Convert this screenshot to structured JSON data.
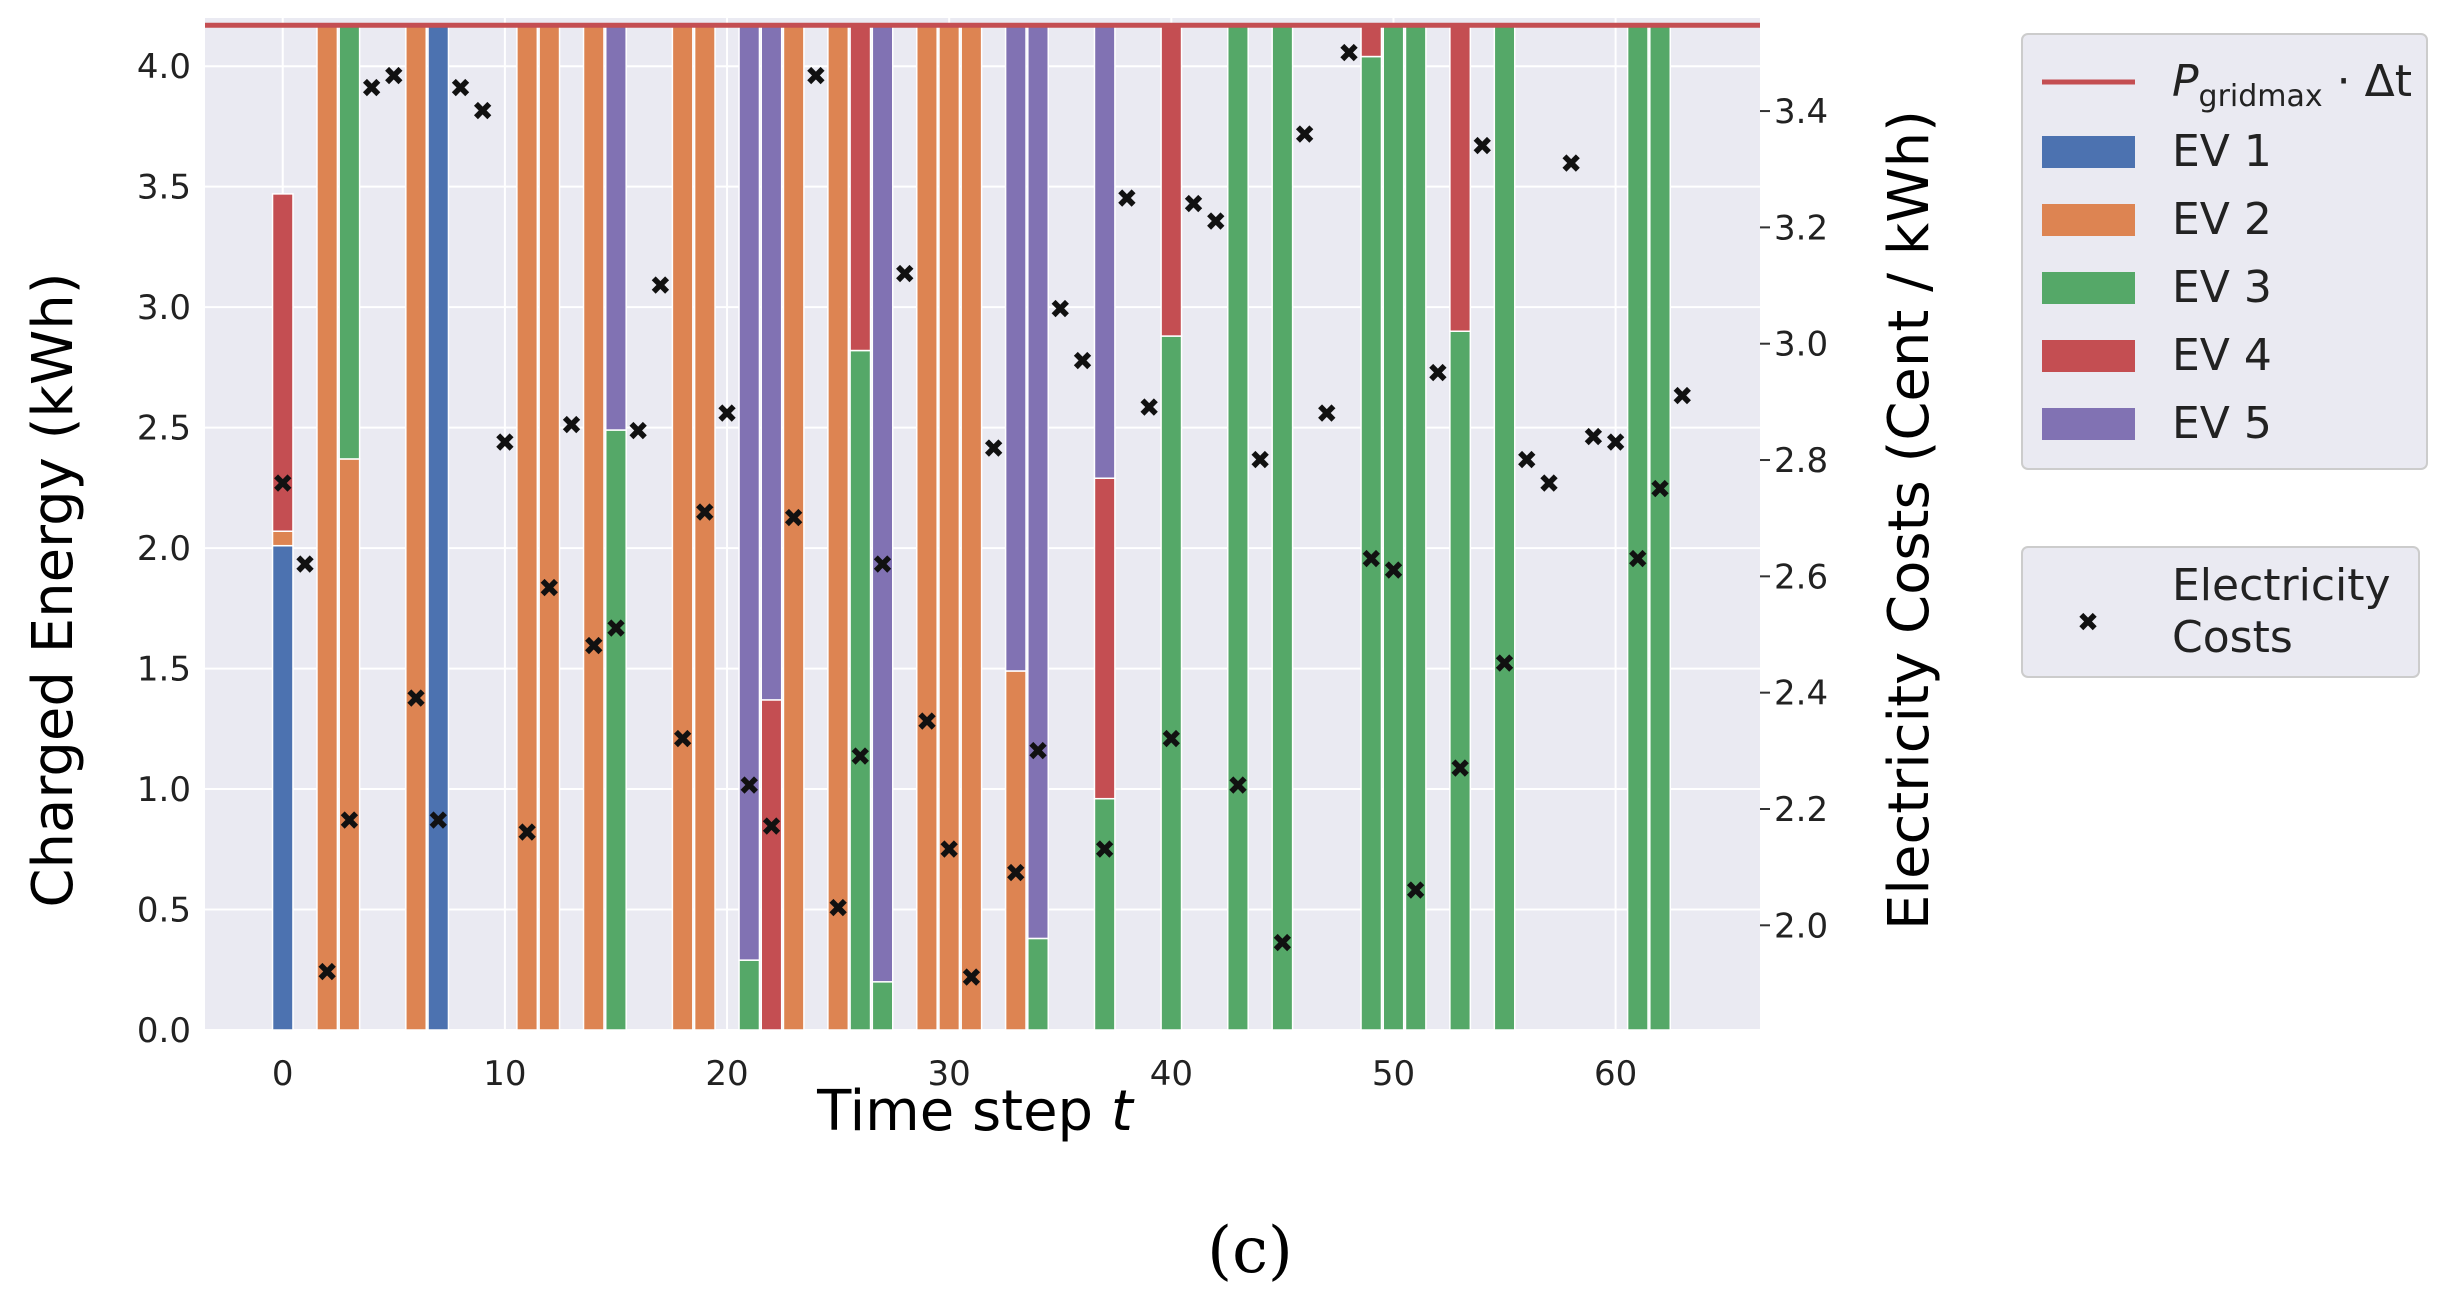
{
  "chart_data": {
    "type": "bar",
    "stacked": true,
    "xlabel": "Time step t",
    "xlabel_main": "Time step ",
    "xlabel_var": "t",
    "ylabel": "Charged Energy (kWh)",
    "y2label": "Electricity Costs (Cent / kWh)",
    "caption": "(c)",
    "xlim": [
      -3.5,
      66.5
    ],
    "ylim": [
      0.0,
      4.2
    ],
    "y2lim": [
      1.82,
      3.56
    ],
    "xticks": [
      0,
      10,
      20,
      30,
      40,
      50,
      60
    ],
    "yticks": [
      0.0,
      0.5,
      1.0,
      1.5,
      2.0,
      2.5,
      3.0,
      3.5,
      4.0
    ],
    "y2ticks": [
      2.0,
      2.2,
      2.4,
      2.6,
      2.8,
      3.0,
      3.2,
      3.4
    ],
    "grid": true,
    "grid_max": {
      "value": 4.17,
      "color": "#c44e52",
      "label_p": "P",
      "label_sub": "gridmax",
      "label_rest": " · Δt"
    },
    "series": [
      {
        "name": "EV 1",
        "color": "#4c72b0",
        "values": [
          2.01,
          0,
          0,
          0,
          0,
          0,
          0,
          4.17,
          0,
          0,
          0,
          0,
          0,
          0,
          0,
          0,
          0,
          0,
          0,
          0,
          0,
          0,
          0,
          0,
          0,
          0,
          0,
          0,
          0,
          0,
          0,
          0,
          0,
          0,
          0,
          0,
          0,
          0,
          0,
          0,
          0,
          0,
          0,
          0,
          0,
          0,
          0,
          0,
          0,
          0,
          0,
          0,
          0,
          0,
          0,
          0,
          0,
          0,
          0,
          0,
          0,
          0,
          0,
          0
        ]
      },
      {
        "name": "EV 2",
        "color": "#dd8452",
        "values": [
          0.06,
          0,
          4.17,
          2.37,
          0,
          0,
          4.17,
          0,
          0,
          0,
          0,
          4.17,
          4.17,
          0,
          4.17,
          0,
          0,
          0,
          4.17,
          4.17,
          0,
          0,
          0,
          4.17,
          0,
          4.17,
          0,
          0,
          0,
          4.17,
          4.17,
          4.17,
          0,
          1.49,
          0,
          0,
          0,
          0,
          0,
          0,
          0,
          0,
          0,
          0,
          0,
          0,
          0,
          0,
          0,
          0,
          0,
          0,
          0,
          0,
          0,
          0,
          0,
          0,
          0,
          0,
          0,
          0,
          0,
          0
        ]
      },
      {
        "name": "EV 3",
        "color": "#55a868",
        "values": [
          0,
          0,
          0,
          1.8,
          0,
          0,
          0,
          0,
          0,
          0,
          0,
          0,
          0,
          0,
          0,
          2.49,
          0,
          0,
          0,
          0,
          0,
          0.29,
          0,
          0,
          0,
          0,
          2.82,
          0.2,
          0,
          0,
          0,
          0,
          0,
          0,
          0.38,
          0,
          0,
          0.96,
          0,
          0,
          2.88,
          0,
          0,
          4.17,
          0,
          4.17,
          0,
          0,
          0,
          4.04,
          4.17,
          4.17,
          0,
          2.9,
          0,
          4.17,
          0,
          0,
          0,
          0,
          0,
          4.17,
          4.17,
          0
        ]
      },
      {
        "name": "EV 4",
        "color": "#c44e52",
        "values": [
          1.4,
          0,
          0,
          0,
          0,
          0,
          0,
          0,
          0,
          0,
          0,
          0,
          0,
          0,
          0,
          0,
          0,
          0,
          0,
          0,
          0,
          0,
          1.37,
          0,
          0,
          0,
          1.35,
          0,
          0,
          0,
          0,
          0,
          0,
          0,
          0,
          0,
          0,
          1.33,
          0,
          0,
          1.29,
          0,
          0,
          0,
          0,
          0,
          0,
          0,
          0,
          0.13,
          0,
          0,
          0,
          1.27,
          0,
          0,
          0,
          0,
          0,
          0,
          0,
          0,
          0,
          0
        ]
      },
      {
        "name": "EV 5",
        "color": "#8172b3",
        "values": [
          0,
          0,
          0,
          0,
          0,
          0,
          0,
          0,
          0,
          0,
          0,
          0,
          0,
          0,
          0,
          1.68,
          0,
          0,
          0,
          0,
          0,
          3.88,
          2.8,
          0,
          0,
          0,
          0,
          3.97,
          0,
          0,
          0,
          0,
          0,
          2.68,
          3.79,
          0,
          0,
          1.88,
          0,
          0,
          0,
          0,
          0,
          0,
          0,
          0,
          0,
          0,
          0,
          0,
          0,
          0,
          0,
          0,
          0,
          0,
          0,
          0,
          0,
          0,
          0,
          0,
          0,
          0
        ]
      }
    ],
    "costs": {
      "name": "Electricity Costs",
      "name_line1": "Electricity",
      "name_line2": "Costs",
      "values": [
        2.76,
        2.62,
        1.92,
        2.18,
        3.44,
        3.46,
        2.39,
        2.18,
        3.44,
        3.4,
        2.83,
        2.16,
        2.58,
        2.86,
        2.48,
        2.51,
        2.85,
        3.1,
        2.32,
        2.71,
        2.88,
        2.24,
        2.17,
        2.7,
        3.46,
        2.03,
        2.29,
        2.62,
        3.12,
        2.35,
        2.13,
        1.91,
        2.82,
        2.09,
        2.3,
        3.06,
        2.97,
        2.13,
        3.25,
        2.89,
        2.32,
        3.24,
        3.21,
        2.24,
        2.8,
        1.97,
        3.36,
        2.88,
        3.5,
        2.63,
        2.61,
        2.06,
        2.95,
        2.27,
        3.34,
        2.45,
        2.8,
        2.76,
        3.31,
        2.84,
        2.83,
        2.63,
        2.75,
        2.91
      ]
    }
  }
}
